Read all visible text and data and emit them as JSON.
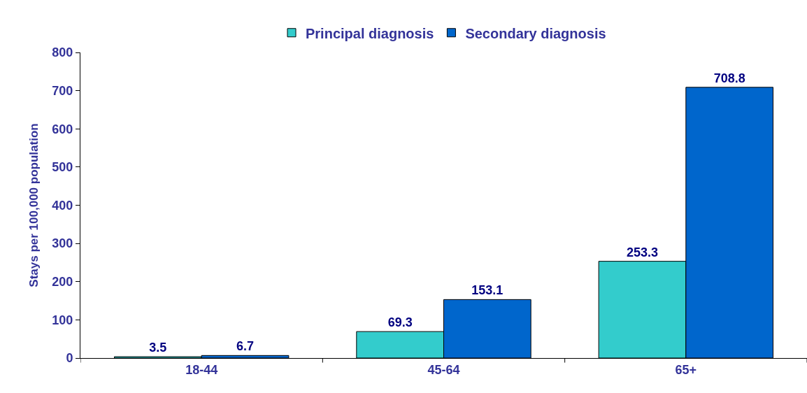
{
  "chart_data": {
    "type": "bar",
    "ylabel": "Stays per 100,000 population",
    "categories": [
      "18-44",
      "45-64",
      "65+"
    ],
    "series": [
      {
        "name": "Principal diagnosis",
        "color": "#33cccc",
        "values": [
          3.5,
          69.3,
          253.3
        ]
      },
      {
        "name": "Secondary diagnosis",
        "color": "#0066cc",
        "values": [
          6.7,
          153.1,
          708.8
        ]
      }
    ],
    "ylim": [
      0,
      800
    ],
    "yticks": [
      0,
      100,
      200,
      300,
      400,
      500,
      600,
      700,
      800
    ],
    "data_labels": true,
    "legend": "top"
  }
}
